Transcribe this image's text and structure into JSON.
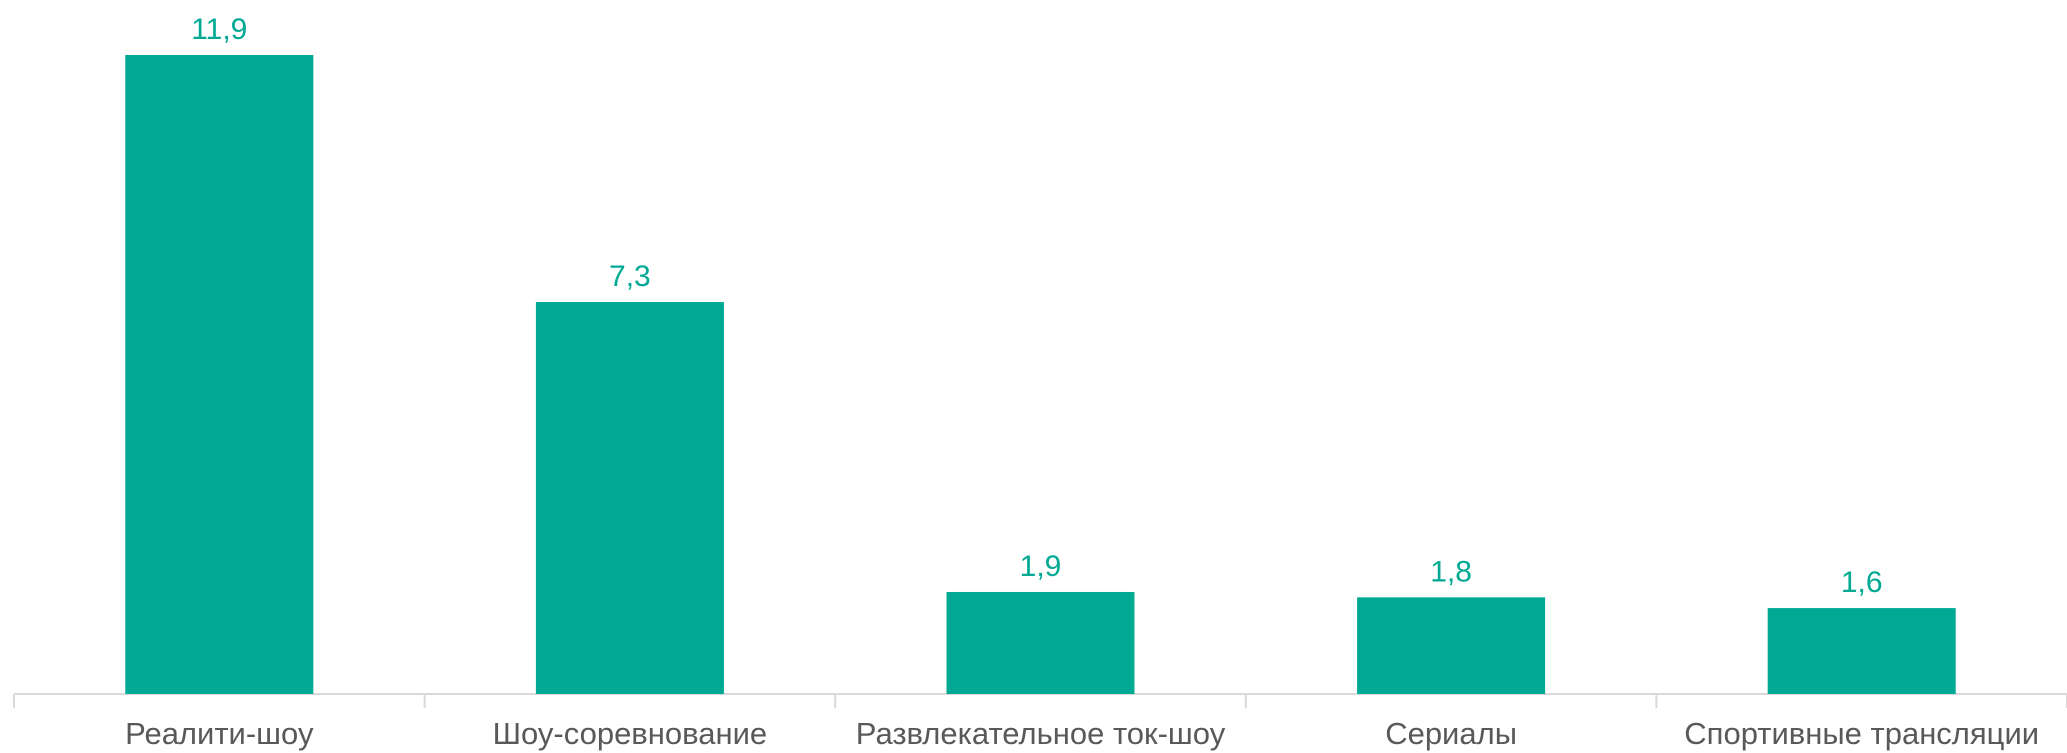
{
  "colors": {
    "bar": "#00a994",
    "data_label": "#00a994",
    "axis": "#d9d9d9",
    "tick_text": "#595959"
  },
  "chart_data": {
    "type": "bar",
    "title": "",
    "xlabel": "",
    "ylabel": "",
    "categories": [
      "Реалити-шоу",
      "Шоу-соревнование",
      "Развлекательное ток-шоу",
      "Сериалы",
      "Спортивные трансляции"
    ],
    "values": [
      11.9,
      7.3,
      1.9,
      1.8,
      1.6
    ],
    "data_labels": [
      "11,9",
      "7,3",
      "1,9",
      "1,8",
      "1,6"
    ],
    "ylim": [
      0,
      11.9
    ],
    "grid": false,
    "legend": "none"
  }
}
